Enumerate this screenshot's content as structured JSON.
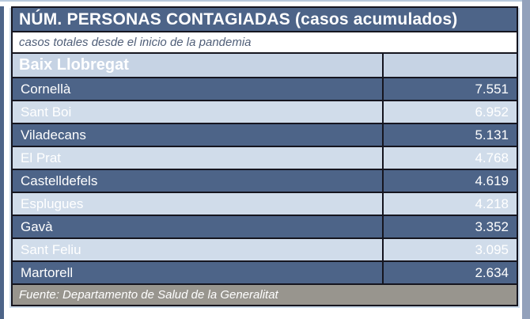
{
  "table": {
    "title": "NÚM. PERSONAS CONTAGIADAS (casos acumulados)",
    "subtitle": "casos totales desde el inicio de la pandemia",
    "region": "Baix Llobregat",
    "rows": [
      {
        "name": "Cornellà",
        "value": "7.551"
      },
      {
        "name": "Sant Boi",
        "value": "6.952"
      },
      {
        "name": "Viladecans",
        "value": "5.131"
      },
      {
        "name": "El Prat",
        "value": "4.768"
      },
      {
        "name": "Castelldefels",
        "value": "4.619"
      },
      {
        "name": "Esplugues",
        "value": "4.218"
      },
      {
        "name": "Gavà",
        "value": "3.352"
      },
      {
        "name": "Sant Feliu",
        "value": "3.095"
      },
      {
        "name": "Martorell",
        "value": "2.634"
      }
    ],
    "source": "Fuente: Departamento de Salud de la Generalitat"
  },
  "chart_data": {
    "type": "table",
    "title": "NÚM. PERSONAS CONTAGIADAS (casos acumulados)",
    "subtitle": "casos totales desde el inicio de la pandemia",
    "group": "Baix Llobregat",
    "categories": [
      "Cornellà",
      "Sant Boi",
      "Viladecans",
      "El Prat",
      "Castelldefels",
      "Esplugues",
      "Gavà",
      "Sant Feliu",
      "Martorell"
    ],
    "values": [
      7551,
      6952,
      5131,
      4768,
      4619,
      4218,
      3352,
      3095,
      2634
    ],
    "source": "Fuente: Departamento de Salud de la Generalitat"
  },
  "colors": {
    "row_dark": "#4D6488",
    "row_light": "#D0DCEA",
    "header_bg": "#C6D3E4",
    "title_bg": "#4D6488",
    "footer_bg": "#98958E",
    "border": "#15151F",
    "text": "#FFFFFF",
    "subtitle_text": "#4F5E78"
  }
}
